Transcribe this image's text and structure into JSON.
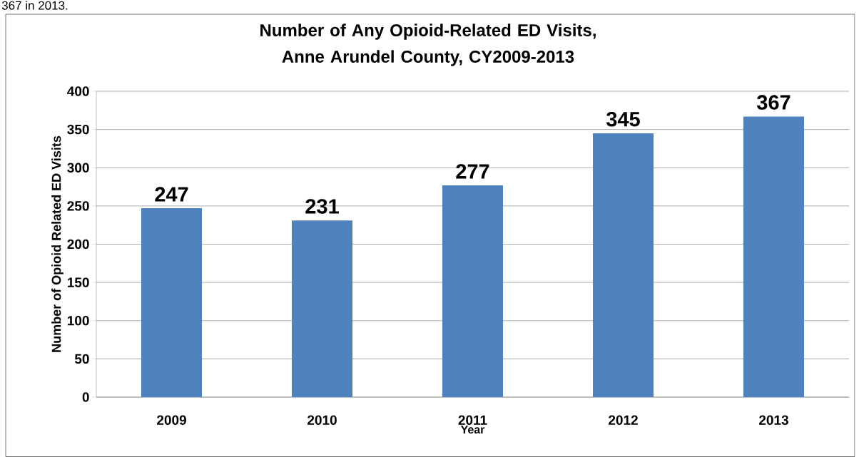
{
  "chart_data": {
    "type": "bar",
    "title": "Number of Any Opioid-Related ED Visits,\nAnne Arundel County, CY2009-2013",
    "xlabel": "Year",
    "ylabel": "Number of Opioid Related ED Visits",
    "annotations": [
      "367 in 2013."
    ],
    "categories": [
      "2009",
      "2010",
      "2011",
      "2012",
      "2013"
    ],
    "values": [
      247,
      231,
      277,
      345,
      367
    ],
    "color": "#4f81bd",
    "ylim": [
      0,
      400
    ],
    "yticks": [
      0,
      50,
      100,
      150,
      200,
      250,
      300,
      350,
      400
    ],
    "grid": "y",
    "data_labels": true
  }
}
